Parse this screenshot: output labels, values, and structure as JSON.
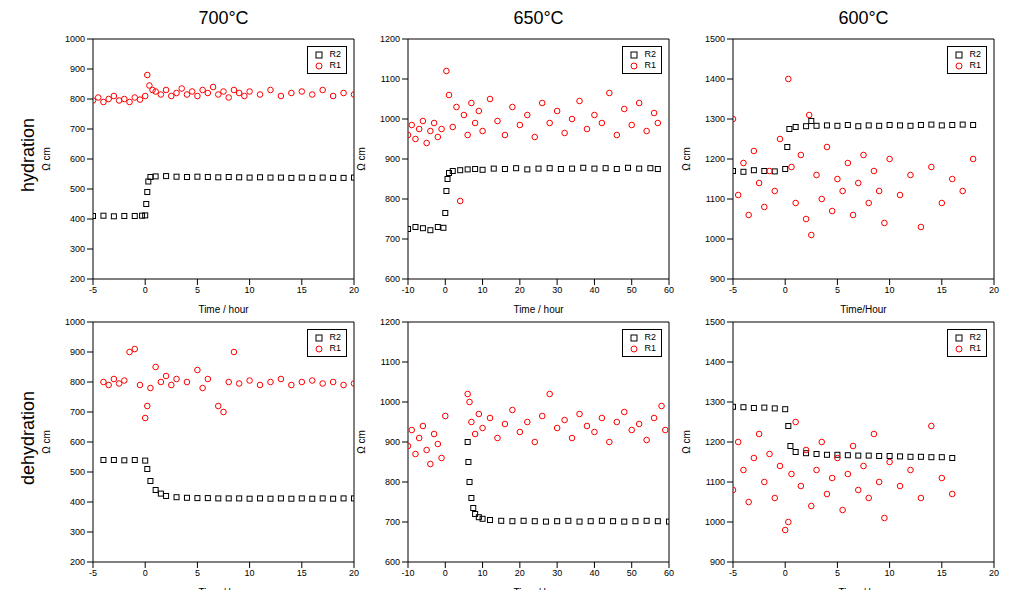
{
  "column_labels": [
    "700°C",
    "650°C",
    "600°C"
  ],
  "row_labels": [
    "hydration",
    "dehydration"
  ],
  "chart_data": [
    {
      "type": "scatter",
      "x_label": "Time / hour",
      "y_label": "Ω cm",
      "xlim": [
        -5,
        20
      ],
      "xticks": [
        -5,
        0,
        5,
        10,
        15,
        20
      ],
      "ylim": [
        200,
        1000
      ],
      "yticks": [
        200,
        300,
        400,
        500,
        600,
        700,
        800,
        900,
        1000
      ],
      "legend": "upper right",
      "series": [
        {
          "name": "R2",
          "color": "#000000",
          "marker": "square",
          "x": [
            -5,
            -4,
            -3,
            -2,
            -1,
            -0.3,
            0,
            0.1,
            0.2,
            0.3,
            0.5,
            1,
            2,
            3,
            4,
            5,
            6,
            7,
            8,
            9,
            10,
            11,
            12,
            13,
            14,
            15,
            16,
            17,
            18,
            19,
            20
          ],
          "values": [
            410,
            411,
            409,
            410,
            410,
            411,
            412,
            450,
            490,
            525,
            540,
            542,
            543,
            541,
            540,
            541,
            540,
            539,
            540,
            539,
            538,
            539,
            538,
            538,
            537,
            538,
            537,
            538,
            537,
            537,
            538
          ]
        },
        {
          "name": "R1",
          "color": "#ff0000",
          "marker": "circle",
          "x": [
            -5,
            -4.5,
            -4,
            -3.5,
            -3,
            -2.5,
            -2,
            -1.5,
            -1,
            -0.5,
            0,
            0.2,
            0.4,
            0.7,
            1,
            1.5,
            2,
            2.5,
            3,
            3.5,
            4,
            4.5,
            5,
            5.5,
            6,
            6.5,
            7,
            7.5,
            8,
            8.5,
            9,
            9.5,
            10,
            11,
            12,
            13,
            14,
            15,
            16,
            17,
            18,
            19,
            20
          ],
          "values": [
            795,
            805,
            790,
            800,
            810,
            795,
            800,
            790,
            805,
            798,
            810,
            880,
            845,
            830,
            825,
            815,
            830,
            810,
            820,
            835,
            815,
            825,
            810,
            830,
            820,
            840,
            815,
            825,
            805,
            830,
            820,
            810,
            825,
            815,
            830,
            810,
            820,
            825,
            815,
            830,
            810,
            820,
            815
          ]
        }
      ]
    },
    {
      "type": "scatter",
      "x_label": "Time / hour",
      "y_label": "Ω cm",
      "xlim": [
        -10,
        60
      ],
      "xticks": [
        -10,
        0,
        10,
        20,
        30,
        40,
        50,
        60
      ],
      "ylim": [
        600,
        1200
      ],
      "yticks": [
        600,
        700,
        800,
        900,
        1000,
        1100,
        1200
      ],
      "legend": "upper right",
      "series": [
        {
          "name": "R2",
          "color": "#000000",
          "marker": "square",
          "x": [
            -10,
            -8,
            -6,
            -4,
            -2,
            -0.5,
            0,
            0.3,
            0.6,
            1,
            2,
            4,
            6,
            8,
            10,
            13,
            16,
            19,
            22,
            25,
            28,
            31,
            34,
            37,
            40,
            43,
            46,
            49,
            52,
            55,
            57
          ],
          "values": [
            725,
            730,
            727,
            722,
            730,
            728,
            765,
            820,
            850,
            865,
            870,
            872,
            874,
            875,
            873,
            876,
            875,
            877,
            874,
            876,
            877,
            875,
            876,
            878,
            876,
            877,
            875,
            878,
            876,
            877,
            875
          ]
        },
        {
          "name": "R1",
          "color": "#ff0000",
          "marker": "circle",
          "x": [
            -10,
            -9,
            -8,
            -7,
            -6,
            -5,
            -4,
            -3,
            -2,
            -1,
            0.3,
            1,
            2,
            3,
            4,
            5,
            6,
            7,
            8,
            9,
            10,
            12,
            14,
            16,
            18,
            20,
            22,
            24,
            26,
            28,
            30,
            32,
            34,
            36,
            38,
            40,
            42,
            44,
            46,
            48,
            50,
            52,
            54,
            56,
            57
          ],
          "values": [
            960,
            985,
            950,
            975,
            995,
            940,
            970,
            990,
            955,
            975,
            1120,
            1060,
            980,
            1030,
            795,
            1010,
            960,
            1040,
            990,
            1020,
            970,
            1050,
            995,
            960,
            1030,
            985,
            1010,
            955,
            1040,
            990,
            1020,
            965,
            1000,
            1045,
            975,
            1010,
            990,
            1065,
            960,
            1025,
            985,
            1040,
            970,
            1015,
            990
          ]
        }
      ]
    },
    {
      "type": "scatter",
      "x_label": "Time/Hour",
      "y_label": "Ω cm",
      "xlim": [
        -5,
        20
      ],
      "xticks": [
        -5,
        0,
        5,
        10,
        15,
        20
      ],
      "ylim": [
        900,
        1500
      ],
      "yticks": [
        900,
        1000,
        1100,
        1200,
        1300,
        1400,
        1500
      ],
      "legend": "upper right",
      "series": [
        {
          "name": "R2",
          "color": "#000000",
          "marker": "square",
          "x": [
            -5,
            -4,
            -3,
            -2,
            -1,
            0,
            0.2,
            0.4,
            1,
            2,
            2.5,
            3,
            4,
            5,
            6,
            7,
            8,
            9,
            10,
            11,
            12,
            13,
            14,
            15,
            16,
            17,
            18
          ],
          "values": [
            1170,
            1168,
            1172,
            1170,
            1169,
            1175,
            1230,
            1275,
            1280,
            1282,
            1295,
            1283,
            1284,
            1283,
            1285,
            1282,
            1284,
            1283,
            1285,
            1284,
            1283,
            1285,
            1286,
            1284,
            1285,
            1286,
            1285
          ]
        },
        {
          "name": "R1",
          "color": "#ff0000",
          "marker": "circle",
          "x": [
            -5,
            -4.5,
            -4,
            -3.5,
            -3,
            -2.5,
            -2,
            -1.5,
            -1,
            -0.5,
            0.3,
            0.6,
            1,
            1.5,
            2,
            2.3,
            2.5,
            3,
            3.5,
            4,
            4.5,
            5,
            5.5,
            6,
            6.5,
            7,
            7.5,
            8,
            8.5,
            9,
            9.5,
            10,
            11,
            12,
            13,
            14,
            15,
            16,
            17,
            18
          ],
          "values": [
            1300,
            1110,
            1190,
            1060,
            1220,
            1140,
            1080,
            1170,
            1120,
            1250,
            1400,
            1180,
            1090,
            1210,
            1050,
            1310,
            1010,
            1160,
            1100,
            1230,
            1070,
            1150,
            1120,
            1190,
            1060,
            1140,
            1210,
            1090,
            1170,
            1120,
            1040,
            1200,
            1110,
            1160,
            1030,
            1180,
            1090,
            1150,
            1120,
            1200
          ]
        }
      ]
    },
    {
      "type": "scatter",
      "x_label": "Time / hour",
      "y_label": "Ω cm",
      "xlim": [
        -5,
        20
      ],
      "xticks": [
        -5,
        0,
        5,
        10,
        15,
        20
      ],
      "ylim": [
        200,
        1000
      ],
      "yticks": [
        200,
        300,
        400,
        500,
        600,
        700,
        800,
        900,
        1000
      ],
      "legend": "upper right",
      "series": [
        {
          "name": "R2",
          "color": "#000000",
          "marker": "square",
          "x": [
            -4,
            -3,
            -2,
            -1,
            0,
            0.2,
            0.5,
            1,
            1.5,
            2,
            3,
            4,
            5,
            6,
            7,
            8,
            9,
            10,
            11,
            12,
            13,
            14,
            15,
            16,
            17,
            18,
            19,
            20
          ],
          "values": [
            540,
            540,
            539,
            540,
            538,
            510,
            470,
            440,
            428,
            420,
            416,
            414,
            413,
            413,
            412,
            412,
            412,
            411,
            412,
            411,
            412,
            411,
            412,
            411,
            412,
            411,
            412,
            412
          ]
        },
        {
          "name": "R1",
          "color": "#ff0000",
          "marker": "circle",
          "x": [
            -4,
            -3.5,
            -3,
            -2.5,
            -2,
            -1.5,
            -1,
            -0.5,
            0,
            0.2,
            0.5,
            1,
            1.5,
            2,
            2.5,
            3,
            4,
            5,
            5.5,
            6,
            7,
            7.5,
            8,
            8.5,
            9,
            10,
            11,
            12,
            13,
            14,
            15,
            16,
            17,
            18,
            19,
            20
          ],
          "values": [
            800,
            790,
            810,
            795,
            805,
            900,
            910,
            790,
            680,
            720,
            780,
            850,
            800,
            820,
            790,
            810,
            800,
            840,
            780,
            810,
            720,
            700,
            800,
            900,
            795,
            805,
            790,
            800,
            810,
            790,
            800,
            805,
            795,
            800,
            790,
            795
          ]
        }
      ]
    },
    {
      "type": "scatter",
      "x_label": "Time / hour",
      "y_label": "Ω cm",
      "xlim": [
        -10,
        60
      ],
      "xticks": [
        -10,
        0,
        10,
        20,
        30,
        40,
        50,
        60
      ],
      "ylim": [
        600,
        1200
      ],
      "yticks": [
        600,
        700,
        800,
        900,
        1000,
        1100,
        1200
      ],
      "legend": "upper right",
      "series": [
        {
          "name": "R2",
          "color": "#000000",
          "marker": "square",
          "x": [
            6,
            6.2,
            6.5,
            7,
            7.5,
            8,
            9,
            10,
            12,
            15,
            18,
            21,
            24,
            27,
            30,
            33,
            36,
            39,
            42,
            45,
            48,
            51,
            54,
            57,
            60
          ],
          "values": [
            900,
            850,
            800,
            760,
            735,
            720,
            712,
            708,
            705,
            703,
            702,
            703,
            702,
            701,
            702,
            703,
            701,
            702,
            703,
            702,
            701,
            702,
            703,
            702,
            701
          ]
        },
        {
          "name": "R1",
          "color": "#ff0000",
          "marker": "circle",
          "x": [
            -10,
            -9,
            -8,
            -7,
            -6,
            -5,
            -4,
            -3,
            -2,
            -1,
            0,
            6,
            6.5,
            7,
            8,
            9,
            10,
            12,
            14,
            16,
            18,
            20,
            22,
            24,
            26,
            28,
            30,
            32,
            34,
            36,
            38,
            40,
            42,
            44,
            46,
            48,
            50,
            52,
            54,
            56,
            58,
            59
          ],
          "values": [
            890,
            930,
            870,
            910,
            940,
            880,
            845,
            920,
            895,
            860,
            965,
            1020,
            1000,
            950,
            920,
            970,
            935,
            960,
            910,
            945,
            980,
            925,
            950,
            900,
            965,
            1020,
            935,
            955,
            910,
            970,
            940,
            925,
            960,
            900,
            950,
            975,
            930,
            945,
            905,
            960,
            990,
            930
          ]
        }
      ]
    },
    {
      "type": "scatter",
      "x_label": "Time / hour",
      "y_label": "Ω cm",
      "xlim": [
        -5,
        20
      ],
      "xticks": [
        -5,
        0,
        5,
        10,
        15,
        20
      ],
      "ylim": [
        900,
        1500
      ],
      "yticks": [
        900,
        1000,
        1100,
        1200,
        1300,
        1400,
        1500
      ],
      "legend": "upper right",
      "series": [
        {
          "name": "R2",
          "color": "#000000",
          "marker": "square",
          "x": [
            -5,
            -4,
            -3,
            -2,
            -1,
            0,
            0.3,
            0.5,
            1,
            2,
            3,
            4,
            5,
            6,
            7,
            8,
            9,
            10,
            11,
            12,
            13,
            14,
            15,
            16
          ],
          "values": [
            1288,
            1287,
            1285,
            1286,
            1284,
            1282,
            1240,
            1190,
            1175,
            1172,
            1170,
            1168,
            1168,
            1167,
            1166,
            1166,
            1165,
            1165,
            1164,
            1163,
            1163,
            1162,
            1162,
            1160
          ]
        },
        {
          "name": "R1",
          "color": "#ff0000",
          "marker": "circle",
          "x": [
            -5,
            -4.5,
            -4,
            -3.5,
            -3,
            -2.5,
            -2,
            -1.5,
            -1,
            -0.5,
            0,
            0.3,
            0.6,
            1,
            1.5,
            2,
            2.5,
            3,
            3.5,
            4,
            4.5,
            5,
            5.5,
            6,
            6.5,
            7,
            7.5,
            8,
            8.5,
            9,
            9.5,
            10,
            11,
            12,
            13,
            14,
            15,
            16
          ],
          "values": [
            1080,
            1200,
            1130,
            1050,
            1160,
            1220,
            1100,
            1170,
            1060,
            1140,
            980,
            1000,
            1120,
            1250,
            1090,
            1180,
            1040,
            1130,
            1200,
            1070,
            1110,
            1160,
            1030,
            1120,
            1190,
            1080,
            1140,
            1060,
            1220,
            1100,
            1010,
            1150,
            1090,
            1130,
            1060,
            1240,
            1110,
            1070
          ]
        }
      ]
    }
  ]
}
